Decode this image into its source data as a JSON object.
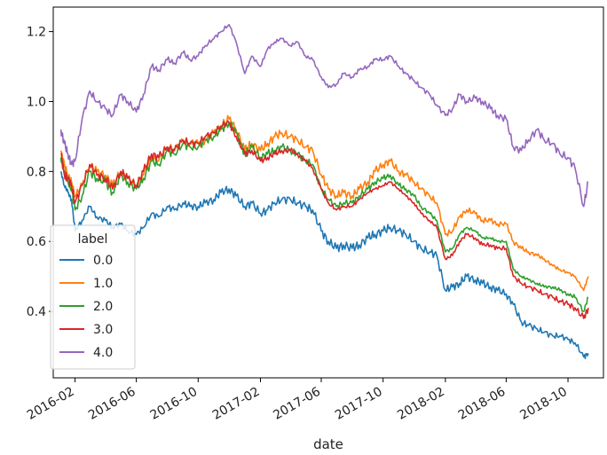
{
  "chart_data": {
    "type": "line",
    "title": "",
    "xlabel": "date",
    "ylabel": "",
    "x_range": [
      "2015-12-20",
      "2018-12-10"
    ],
    "ylim": [
      0.21,
      1.27
    ],
    "grid": false,
    "legend": {
      "title": "label",
      "placement": "lower-left"
    },
    "x_ticks": [
      {
        "date": "2016-02-01",
        "label": "2016-02"
      },
      {
        "date": "2016-06-01",
        "label": "2016-06"
      },
      {
        "date": "2016-10-01",
        "label": "2016-10"
      },
      {
        "date": "2017-02-01",
        "label": "2017-02"
      },
      {
        "date": "2017-06-01",
        "label": "2017-06"
      },
      {
        "date": "2017-10-01",
        "label": "2017-10"
      },
      {
        "date": "2018-02-01",
        "label": "2018-02"
      },
      {
        "date": "2018-06-01",
        "label": "2018-06"
      },
      {
        "date": "2018-10-01",
        "label": "2018-10"
      }
    ],
    "y_ticks": [
      {
        "value": 0.4,
        "label": "0.4"
      },
      {
        "value": 0.6,
        "label": "0.6"
      },
      {
        "value": 0.8,
        "label": "0.8"
      },
      {
        "value": 1.0,
        "label": "1.0"
      },
      {
        "value": 1.2,
        "label": "1.2"
      }
    ],
    "x": [
      "2016-01-04",
      "2016-01-11",
      "2016-01-18",
      "2016-01-25",
      "2016-02-01",
      "2016-02-15",
      "2016-03-01",
      "2016-03-15",
      "2016-04-01",
      "2016-04-15",
      "2016-05-01",
      "2016-05-15",
      "2016-06-01",
      "2016-06-15",
      "2016-07-01",
      "2016-07-15",
      "2016-08-01",
      "2016-08-15",
      "2016-09-01",
      "2016-09-15",
      "2016-10-01",
      "2016-10-15",
      "2016-11-01",
      "2016-11-15",
      "2016-12-01",
      "2016-12-15",
      "2017-01-01",
      "2017-01-15",
      "2017-02-01",
      "2017-02-15",
      "2017-03-01",
      "2017-03-15",
      "2017-04-01",
      "2017-04-15",
      "2017-05-01",
      "2017-05-15",
      "2017-06-01",
      "2017-06-15",
      "2017-07-01",
      "2017-07-15",
      "2017-08-01",
      "2017-08-15",
      "2017-09-01",
      "2017-09-15",
      "2017-10-01",
      "2017-10-15",
      "2017-11-01",
      "2017-11-15",
      "2017-12-01",
      "2017-12-15",
      "2018-01-01",
      "2018-01-15",
      "2018-02-01",
      "2018-02-15",
      "2018-03-01",
      "2018-03-15",
      "2018-04-01",
      "2018-04-15",
      "2018-05-01",
      "2018-05-15",
      "2018-06-01",
      "2018-06-15",
      "2018-07-01",
      "2018-07-15",
      "2018-08-01",
      "2018-08-15",
      "2018-09-01",
      "2018-09-15",
      "2018-10-01",
      "2018-10-15",
      "2018-11-01",
      "2018-11-10"
    ],
    "series": [
      {
        "name": "0.0",
        "color": "#1f77b4",
        "values": [
          0.8,
          0.76,
          0.74,
          0.72,
          0.63,
          0.66,
          0.7,
          0.67,
          0.66,
          0.64,
          0.65,
          0.63,
          0.62,
          0.64,
          0.68,
          0.67,
          0.7,
          0.69,
          0.71,
          0.7,
          0.7,
          0.71,
          0.72,
          0.74,
          0.75,
          0.73,
          0.7,
          0.71,
          0.68,
          0.69,
          0.71,
          0.72,
          0.72,
          0.71,
          0.7,
          0.69,
          0.63,
          0.6,
          0.58,
          0.59,
          0.58,
          0.59,
          0.61,
          0.62,
          0.63,
          0.64,
          0.63,
          0.62,
          0.6,
          0.58,
          0.57,
          0.56,
          0.46,
          0.47,
          0.48,
          0.5,
          0.49,
          0.48,
          0.47,
          0.46,
          0.45,
          0.42,
          0.37,
          0.36,
          0.35,
          0.34,
          0.33,
          0.33,
          0.32,
          0.31,
          0.27,
          0.28
        ]
      },
      {
        "name": "1.0",
        "color": "#ff7f0e",
        "values": [
          0.86,
          0.82,
          0.79,
          0.77,
          0.73,
          0.76,
          0.82,
          0.8,
          0.79,
          0.76,
          0.8,
          0.78,
          0.76,
          0.79,
          0.84,
          0.83,
          0.87,
          0.86,
          0.89,
          0.88,
          0.88,
          0.89,
          0.91,
          0.93,
          0.95,
          0.92,
          0.86,
          0.88,
          0.86,
          0.88,
          0.9,
          0.91,
          0.9,
          0.89,
          0.87,
          0.86,
          0.79,
          0.75,
          0.73,
          0.74,
          0.73,
          0.75,
          0.77,
          0.8,
          0.82,
          0.83,
          0.8,
          0.79,
          0.77,
          0.75,
          0.73,
          0.71,
          0.62,
          0.63,
          0.67,
          0.69,
          0.68,
          0.66,
          0.66,
          0.65,
          0.65,
          0.6,
          0.58,
          0.57,
          0.56,
          0.55,
          0.53,
          0.52,
          0.51,
          0.5,
          0.46,
          0.5
        ]
      },
      {
        "name": "2.0",
        "color": "#2ca02c",
        "values": [
          0.84,
          0.8,
          0.77,
          0.75,
          0.69,
          0.73,
          0.8,
          0.78,
          0.77,
          0.74,
          0.79,
          0.77,
          0.75,
          0.78,
          0.83,
          0.82,
          0.86,
          0.85,
          0.88,
          0.87,
          0.87,
          0.89,
          0.9,
          0.92,
          0.94,
          0.91,
          0.85,
          0.87,
          0.84,
          0.85,
          0.86,
          0.87,
          0.86,
          0.85,
          0.83,
          0.82,
          0.75,
          0.72,
          0.7,
          0.71,
          0.71,
          0.73,
          0.75,
          0.77,
          0.78,
          0.79,
          0.76,
          0.75,
          0.73,
          0.7,
          0.68,
          0.66,
          0.57,
          0.58,
          0.62,
          0.64,
          0.63,
          0.61,
          0.61,
          0.6,
          0.6,
          0.52,
          0.5,
          0.49,
          0.48,
          0.47,
          0.47,
          0.46,
          0.45,
          0.44,
          0.4,
          0.44
        ]
      },
      {
        "name": "3.0",
        "color": "#d62728",
        "values": [
          0.85,
          0.79,
          0.78,
          0.76,
          0.71,
          0.76,
          0.82,
          0.79,
          0.78,
          0.75,
          0.8,
          0.78,
          0.76,
          0.8,
          0.85,
          0.84,
          0.87,
          0.86,
          0.89,
          0.88,
          0.88,
          0.9,
          0.91,
          0.93,
          0.94,
          0.9,
          0.85,
          0.86,
          0.83,
          0.84,
          0.85,
          0.86,
          0.86,
          0.85,
          0.83,
          0.81,
          0.75,
          0.71,
          0.69,
          0.7,
          0.7,
          0.72,
          0.74,
          0.75,
          0.76,
          0.77,
          0.75,
          0.73,
          0.71,
          0.68,
          0.66,
          0.64,
          0.55,
          0.56,
          0.6,
          0.62,
          0.61,
          0.59,
          0.59,
          0.58,
          0.58,
          0.5,
          0.48,
          0.47,
          0.46,
          0.45,
          0.44,
          0.43,
          0.42,
          0.41,
          0.38,
          0.41
        ]
      },
      {
        "name": "4.0",
        "color": "#9467bd",
        "values": [
          0.92,
          0.88,
          0.85,
          0.82,
          0.83,
          0.95,
          1.03,
          1.0,
          0.98,
          0.96,
          1.02,
          1.0,
          0.97,
          1.02,
          1.1,
          1.09,
          1.12,
          1.11,
          1.14,
          1.12,
          1.13,
          1.16,
          1.18,
          1.2,
          1.22,
          1.17,
          1.08,
          1.13,
          1.1,
          1.15,
          1.17,
          1.18,
          1.16,
          1.17,
          1.13,
          1.12,
          1.07,
          1.04,
          1.05,
          1.08,
          1.07,
          1.09,
          1.1,
          1.12,
          1.12,
          1.13,
          1.1,
          1.08,
          1.06,
          1.04,
          1.02,
          0.99,
          0.96,
          0.98,
          1.02,
          1.0,
          1.01,
          1.0,
          0.98,
          0.96,
          0.95,
          0.87,
          0.86,
          0.89,
          0.92,
          0.89,
          0.88,
          0.85,
          0.84,
          0.81,
          0.7,
          0.77
        ]
      }
    ]
  }
}
